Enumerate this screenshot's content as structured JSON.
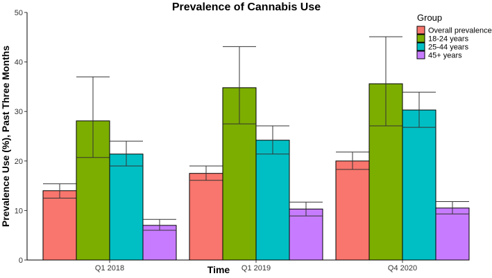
{
  "chart_data": {
    "type": "bar",
    "title": "Prevalence of Cannabis Use",
    "xlabel": "Time",
    "ylabel": "Prevalence Use (%), Past Three Months",
    "ylim": [
      0,
      50
    ],
    "yticks": [
      0,
      10,
      20,
      30,
      40,
      50
    ],
    "grid": false,
    "legend": {
      "title": "Group",
      "position": "top-right"
    },
    "categories": [
      "Q1 2018",
      "Q1 2019",
      "Q4 2020"
    ],
    "series": [
      {
        "name": "Overall prevalence",
        "color": "#F8766D",
        "values": [
          14.0,
          17.5,
          20.0
        ],
        "err_low": [
          12.5,
          16.1,
          18.3
        ],
        "err_high": [
          15.4,
          19.0,
          21.8
        ]
      },
      {
        "name": "18-24 years",
        "color": "#7CAE00",
        "values": [
          28.1,
          34.8,
          35.6
        ],
        "err_low": [
          20.7,
          27.5,
          27.1
        ],
        "err_high": [
          37.0,
          43.1,
          45.1
        ]
      },
      {
        "name": "25-44 years",
        "color": "#00BFC4",
        "values": [
          21.4,
          24.2,
          30.3
        ],
        "err_low": [
          19.0,
          21.4,
          26.8
        ],
        "err_high": [
          24.0,
          27.1,
          33.9
        ]
      },
      {
        "name": "45+ years",
        "color": "#C77CFF",
        "values": [
          7.0,
          10.3,
          10.5
        ],
        "err_low": [
          6.0,
          8.9,
          9.3
        ],
        "err_high": [
          8.2,
          11.7,
          11.8
        ]
      }
    ]
  }
}
